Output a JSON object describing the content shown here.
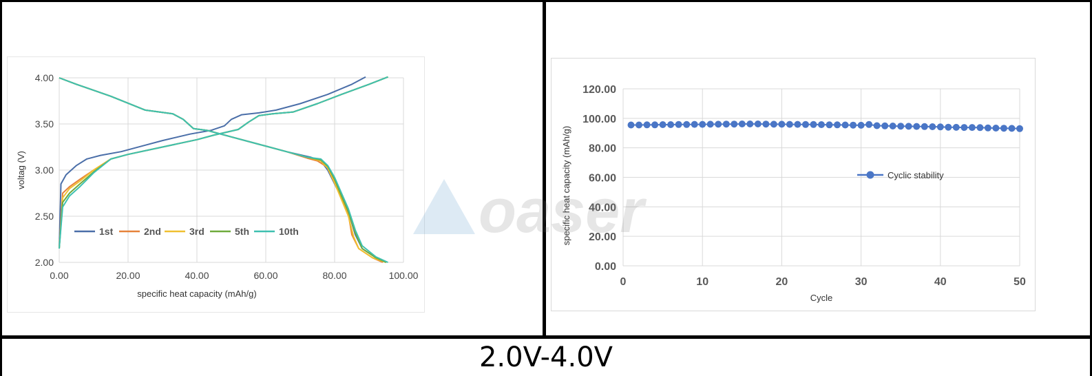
{
  "caption": "2.0V-4.0V",
  "watermark": {
    "text": "oaser",
    "color": "#4a90c8"
  },
  "chart_data": [
    {
      "type": "line",
      "title": "",
      "xlabel": "specific heat capacity (mAh/g)",
      "ylabel": "voltag (V)",
      "xlim": [
        0,
        100
      ],
      "ylim": [
        2.0,
        4.0
      ],
      "x_ticks": [
        "0.00",
        "20.00",
        "40.00",
        "60.00",
        "80.00",
        "100.00"
      ],
      "y_ticks": [
        "2.00",
        "2.50",
        "3.00",
        "3.50",
        "4.00"
      ],
      "grid": true,
      "legend_position": "bottom-left",
      "series": [
        {
          "name": "1st",
          "color": "#4a6ea8",
          "charge": [
            [
              0,
              2.15
            ],
            [
              0.5,
              2.85
            ],
            [
              2,
              2.95
            ],
            [
              5,
              3.05
            ],
            [
              8,
              3.12
            ],
            [
              12,
              3.16
            ],
            [
              18,
              3.2
            ],
            [
              25,
              3.27
            ],
            [
              30,
              3.32
            ],
            [
              38,
              3.39
            ],
            [
              44,
              3.43
            ],
            [
              48,
              3.48
            ],
            [
              50,
              3.55
            ],
            [
              53,
              3.6
            ],
            [
              58,
              3.62
            ],
            [
              63,
              3.65
            ],
            [
              70,
              3.72
            ],
            [
              78,
              3.82
            ],
            [
              85,
              3.93
            ],
            [
              89,
              4.01
            ]
          ],
          "discharge": [
            [
              0,
              4.0
            ],
            [
              5,
              3.93
            ],
            [
              15,
              3.8
            ],
            [
              25,
              3.65
            ],
            [
              33,
              3.61
            ],
            [
              36,
              3.55
            ],
            [
              39,
              3.45
            ],
            [
              43,
              3.43
            ],
            [
              50,
              3.36
            ],
            [
              58,
              3.28
            ],
            [
              66,
              3.2
            ],
            [
              73,
              3.14
            ],
            [
              76,
              3.1
            ],
            [
              78,
              3.0
            ],
            [
              80,
              2.85
            ],
            [
              82,
              2.7
            ],
            [
              84,
              2.55
            ],
            [
              86,
              2.3
            ],
            [
              88,
              2.15
            ],
            [
              92,
              2.05
            ],
            [
              95,
              2.0
            ]
          ]
        },
        {
          "name": "2nd",
          "color": "#e6823a",
          "charge": [
            [
              0,
              2.15
            ],
            [
              1,
              2.75
            ],
            [
              3,
              2.82
            ],
            [
              6,
              2.9
            ],
            [
              10,
              3.0
            ],
            [
              15,
              3.12
            ],
            [
              20,
              3.17
            ],
            [
              30,
              3.25
            ],
            [
              40,
              3.33
            ],
            [
              45,
              3.38
            ],
            [
              52,
              3.44
            ],
            [
              55,
              3.52
            ],
            [
              58,
              3.59
            ],
            [
              62,
              3.61
            ],
            [
              68,
              3.63
            ],
            [
              75,
              3.72
            ],
            [
              82,
              3.82
            ],
            [
              90,
              3.93
            ],
            [
              95.5,
              4.01
            ]
          ],
          "discharge": [
            [
              0,
              4.0
            ],
            [
              5,
              3.93
            ],
            [
              15,
              3.8
            ],
            [
              25,
              3.65
            ],
            [
              33,
              3.61
            ],
            [
              36,
              3.55
            ],
            [
              39,
              3.45
            ],
            [
              43,
              3.43
            ],
            [
              50,
              3.36
            ],
            [
              58,
              3.28
            ],
            [
              66,
              3.2
            ],
            [
              72,
              3.13
            ],
            [
              75,
              3.1
            ],
            [
              78,
              3.03
            ],
            [
              80,
              2.88
            ],
            [
              82,
              2.7
            ],
            [
              84,
              2.52
            ],
            [
              85,
              2.3
            ],
            [
              87,
              2.15
            ],
            [
              91,
              2.05
            ],
            [
              94,
              2.0
            ]
          ]
        },
        {
          "name": "3rd",
          "color": "#f0c030",
          "charge": [
            [
              0,
              2.15
            ],
            [
              1,
              2.7
            ],
            [
              3,
              2.8
            ],
            [
              6,
              2.88
            ],
            [
              10,
              3.0
            ],
            [
              15,
              3.12
            ],
            [
              20,
              3.17
            ],
            [
              30,
              3.25
            ],
            [
              40,
              3.33
            ],
            [
              45,
              3.38
            ],
            [
              52,
              3.44
            ],
            [
              55,
              3.52
            ],
            [
              58,
              3.59
            ],
            [
              62,
              3.61
            ],
            [
              68,
              3.63
            ],
            [
              75,
              3.72
            ],
            [
              82,
              3.82
            ],
            [
              90,
              3.93
            ],
            [
              95.5,
              4.01
            ]
          ],
          "discharge": [
            [
              0,
              4.0
            ],
            [
              5,
              3.93
            ],
            [
              15,
              3.8
            ],
            [
              25,
              3.65
            ],
            [
              33,
              3.61
            ],
            [
              36,
              3.55
            ],
            [
              39,
              3.45
            ],
            [
              43,
              3.43
            ],
            [
              50,
              3.36
            ],
            [
              58,
              3.28
            ],
            [
              66,
              3.2
            ],
            [
              72,
              3.14
            ],
            [
              76,
              3.1
            ],
            [
              78,
              3.02
            ],
            [
              80,
              2.86
            ],
            [
              82,
              2.68
            ],
            [
              84,
              2.5
            ],
            [
              85.5,
              2.28
            ],
            [
              87,
              2.15
            ],
            [
              91,
              2.05
            ],
            [
              95,
              2.0
            ]
          ]
        },
        {
          "name": "5th",
          "color": "#6faa3c",
          "charge": [
            [
              0,
              2.15
            ],
            [
              1,
              2.65
            ],
            [
              3,
              2.75
            ],
            [
              6,
              2.85
            ],
            [
              10,
              2.98
            ],
            [
              15,
              3.12
            ],
            [
              20,
              3.17
            ],
            [
              30,
              3.25
            ],
            [
              40,
              3.33
            ],
            [
              45,
              3.38
            ],
            [
              52,
              3.44
            ],
            [
              55,
              3.52
            ],
            [
              58,
              3.59
            ],
            [
              62,
              3.61
            ],
            [
              68,
              3.63
            ],
            [
              75,
              3.72
            ],
            [
              82,
              3.82
            ],
            [
              90,
              3.93
            ],
            [
              95.5,
              4.01
            ]
          ],
          "discharge": [
            [
              0,
              4.0
            ],
            [
              5,
              3.93
            ],
            [
              15,
              3.8
            ],
            [
              25,
              3.65
            ],
            [
              33,
              3.61
            ],
            [
              36,
              3.55
            ],
            [
              39,
              3.45
            ],
            [
              43,
              3.43
            ],
            [
              50,
              3.36
            ],
            [
              58,
              3.28
            ],
            [
              66,
              3.2
            ],
            [
              72,
              3.14
            ],
            [
              76,
              3.11
            ],
            [
              78,
              3.04
            ],
            [
              80,
              2.9
            ],
            [
              82,
              2.72
            ],
            [
              84,
              2.55
            ],
            [
              86,
              2.32
            ],
            [
              88,
              2.15
            ],
            [
              92,
              2.05
            ],
            [
              95,
              2.0
            ]
          ]
        },
        {
          "name": "10th",
          "color": "#3ec0b0",
          "charge": [
            [
              0,
              2.15
            ],
            [
              1,
              2.6
            ],
            [
              3,
              2.72
            ],
            [
              6,
              2.82
            ],
            [
              10,
              2.97
            ],
            [
              15,
              3.12
            ],
            [
              20,
              3.17
            ],
            [
              30,
              3.25
            ],
            [
              40,
              3.33
            ],
            [
              45,
              3.38
            ],
            [
              52,
              3.44
            ],
            [
              55,
              3.52
            ],
            [
              58,
              3.59
            ],
            [
              62,
              3.61
            ],
            [
              68,
              3.63
            ],
            [
              75,
              3.72
            ],
            [
              82,
              3.82
            ],
            [
              90,
              3.93
            ],
            [
              95.5,
              4.01
            ]
          ],
          "discharge": [
            [
              0,
              4.0
            ],
            [
              5,
              3.93
            ],
            [
              15,
              3.8
            ],
            [
              25,
              3.65
            ],
            [
              33,
              3.61
            ],
            [
              36,
              3.55
            ],
            [
              39,
              3.45
            ],
            [
              43,
              3.43
            ],
            [
              50,
              3.36
            ],
            [
              58,
              3.28
            ],
            [
              66,
              3.2
            ],
            [
              72,
              3.14
            ],
            [
              76,
              3.12
            ],
            [
              78,
              3.05
            ],
            [
              80,
              2.92
            ],
            [
              82,
              2.75
            ],
            [
              84,
              2.58
            ],
            [
              86,
              2.35
            ],
            [
              88,
              2.18
            ],
            [
              92,
              2.06
            ],
            [
              95.5,
              2.0
            ]
          ]
        }
      ]
    },
    {
      "type": "line",
      "title": "",
      "xlabel": "Cycle",
      "ylabel": "specific heat capacity (mAh/g)",
      "xlim": [
        0,
        50
      ],
      "ylim": [
        0,
        120
      ],
      "x_ticks": [
        "0",
        "10",
        "20",
        "30",
        "40",
        "50"
      ],
      "y_ticks": [
        "0.00",
        "20.00",
        "40.00",
        "60.00",
        "80.00",
        "100.00",
        "120.00"
      ],
      "grid": true,
      "legend_position": "center-right",
      "series": [
        {
          "name": "Cyclic stability",
          "color": "#4a76c6",
          "x": [
            1,
            2,
            3,
            4,
            5,
            6,
            7,
            8,
            9,
            10,
            11,
            12,
            13,
            14,
            15,
            16,
            17,
            18,
            19,
            20,
            21,
            22,
            23,
            24,
            25,
            26,
            27,
            28,
            29,
            30,
            31,
            32,
            33,
            34,
            35,
            36,
            37,
            38,
            39,
            40,
            41,
            42,
            43,
            44,
            45,
            46,
            47,
            48,
            49,
            50
          ],
          "values": [
            95.5,
            95.5,
            95.6,
            95.6,
            95.7,
            95.7,
            95.8,
            95.8,
            95.9,
            95.9,
            96.0,
            96.0,
            96.1,
            96.1,
            96.2,
            96.2,
            96.2,
            96.1,
            96.0,
            96.0,
            95.9,
            95.9,
            95.8,
            95.8,
            95.7,
            95.6,
            95.6,
            95.5,
            95.4,
            95.3,
            95.8,
            95.0,
            94.9,
            94.8,
            94.7,
            94.6,
            94.5,
            94.4,
            94.3,
            94.2,
            94.0,
            93.9,
            93.8,
            93.8,
            93.7,
            93.5,
            93.4,
            93.3,
            93.2,
            93.0
          ]
        }
      ]
    }
  ]
}
